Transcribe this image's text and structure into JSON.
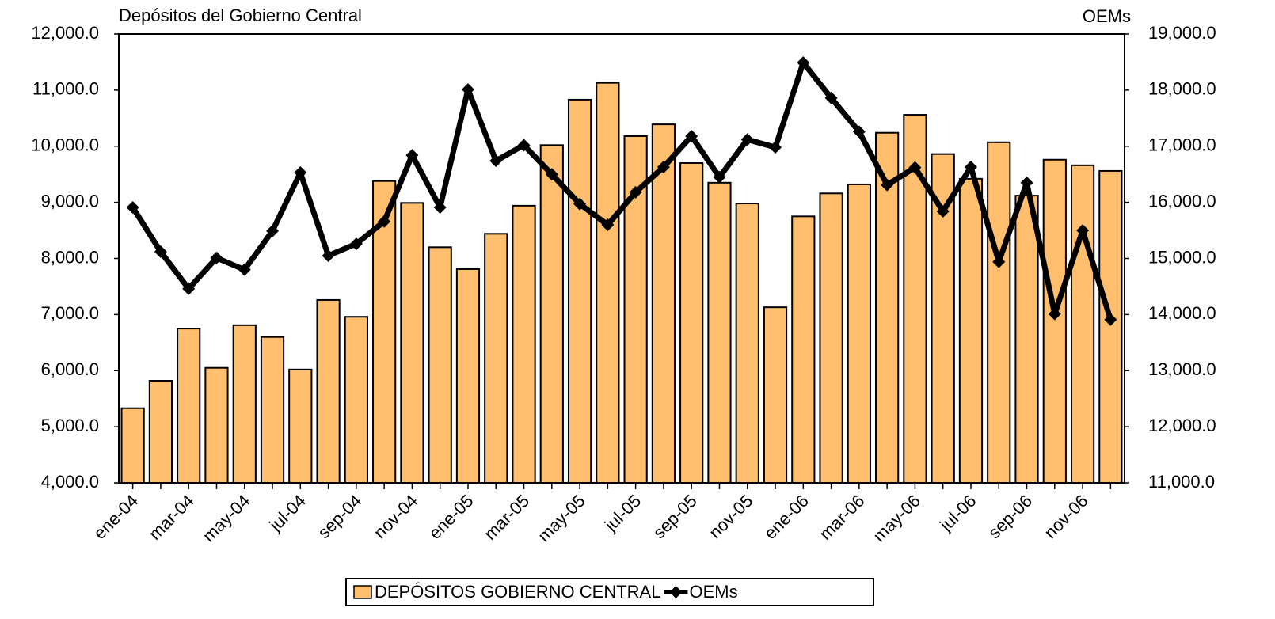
{
  "chart_data": {
    "type": "bar_line",
    "title": "Depósitos del Gobierno Central",
    "y2_title": "OEMs",
    "categories": [
      "ene-04",
      null,
      "mar-04",
      null,
      "may-04",
      null,
      "jul-04",
      null,
      "sep-04",
      null,
      "nov-04",
      null,
      "ene-05",
      null,
      "mar-05",
      null,
      "may-05",
      null,
      "jul-05",
      null,
      "sep-05",
      null,
      "nov-05",
      null,
      "ene-06",
      null,
      "mar-06",
      null,
      "may-06",
      null,
      "jul-06",
      null,
      "sep-06",
      null,
      "nov-06",
      null
    ],
    "series": [
      {
        "name": "DEPÓSITOS GOBIERNO CENTRAL",
        "kind": "bar",
        "color": "#ffbf6e",
        "axis": "y",
        "values": [
          5330,
          5820,
          6750,
          6050,
          6810,
          6600,
          6020,
          7260,
          6960,
          9380,
          8990,
          8200,
          7810,
          8440,
          8940,
          10020,
          10830,
          11130,
          10180,
          10390,
          9700,
          9350,
          8980,
          7130,
          8750,
          9160,
          9320,
          10240,
          10560,
          9860,
          9420,
          10070,
          9120,
          9760,
          9660,
          9560
        ]
      },
      {
        "name": "OEMs",
        "kind": "line",
        "color": "#000000",
        "axis": "y2",
        "values": [
          15910,
          15120,
          14460,
          15010,
          14800,
          15490,
          16530,
          15050,
          15260,
          15660,
          16840,
          15910,
          18010,
          16740,
          17020,
          16500,
          15970,
          15600,
          16180,
          16630,
          17180,
          16450,
          17120,
          16980,
          18490,
          17860,
          17260,
          16310,
          16620,
          15840,
          16630,
          14940,
          16350,
          14010,
          15500,
          13910
        ]
      }
    ],
    "ylim": [
      4000,
      12000
    ],
    "yticks": [
      {
        "value": 4000,
        "label": "4,000.0"
      },
      {
        "value": 5000,
        "label": "5,000.0"
      },
      {
        "value": 6000,
        "label": "6,000.0"
      },
      {
        "value": 7000,
        "label": "7,000.0"
      },
      {
        "value": 8000,
        "label": "8,000.0"
      },
      {
        "value": 9000,
        "label": "9,000.0"
      },
      {
        "value": 10000,
        "label": "10,000.0"
      },
      {
        "value": 11000,
        "label": "11,000.0"
      },
      {
        "value": 12000,
        "label": "12,000.0"
      }
    ],
    "y2lim": [
      11000,
      19000
    ],
    "y2ticks": [
      {
        "value": 11000,
        "label": "11,000.0"
      },
      {
        "value": 12000,
        "label": "12,000.0"
      },
      {
        "value": 13000,
        "label": "13,000.0"
      },
      {
        "value": 14000,
        "label": "14,000.0"
      },
      {
        "value": 15000,
        "label": "15,000.0"
      },
      {
        "value": 16000,
        "label": "16,000.0"
      },
      {
        "value": 17000,
        "label": "17,000.0"
      },
      {
        "value": 18000,
        "label": "18,000.0"
      },
      {
        "value": 19000,
        "label": "19,000.0"
      }
    ],
    "grid": false,
    "legend": "bottom"
  }
}
